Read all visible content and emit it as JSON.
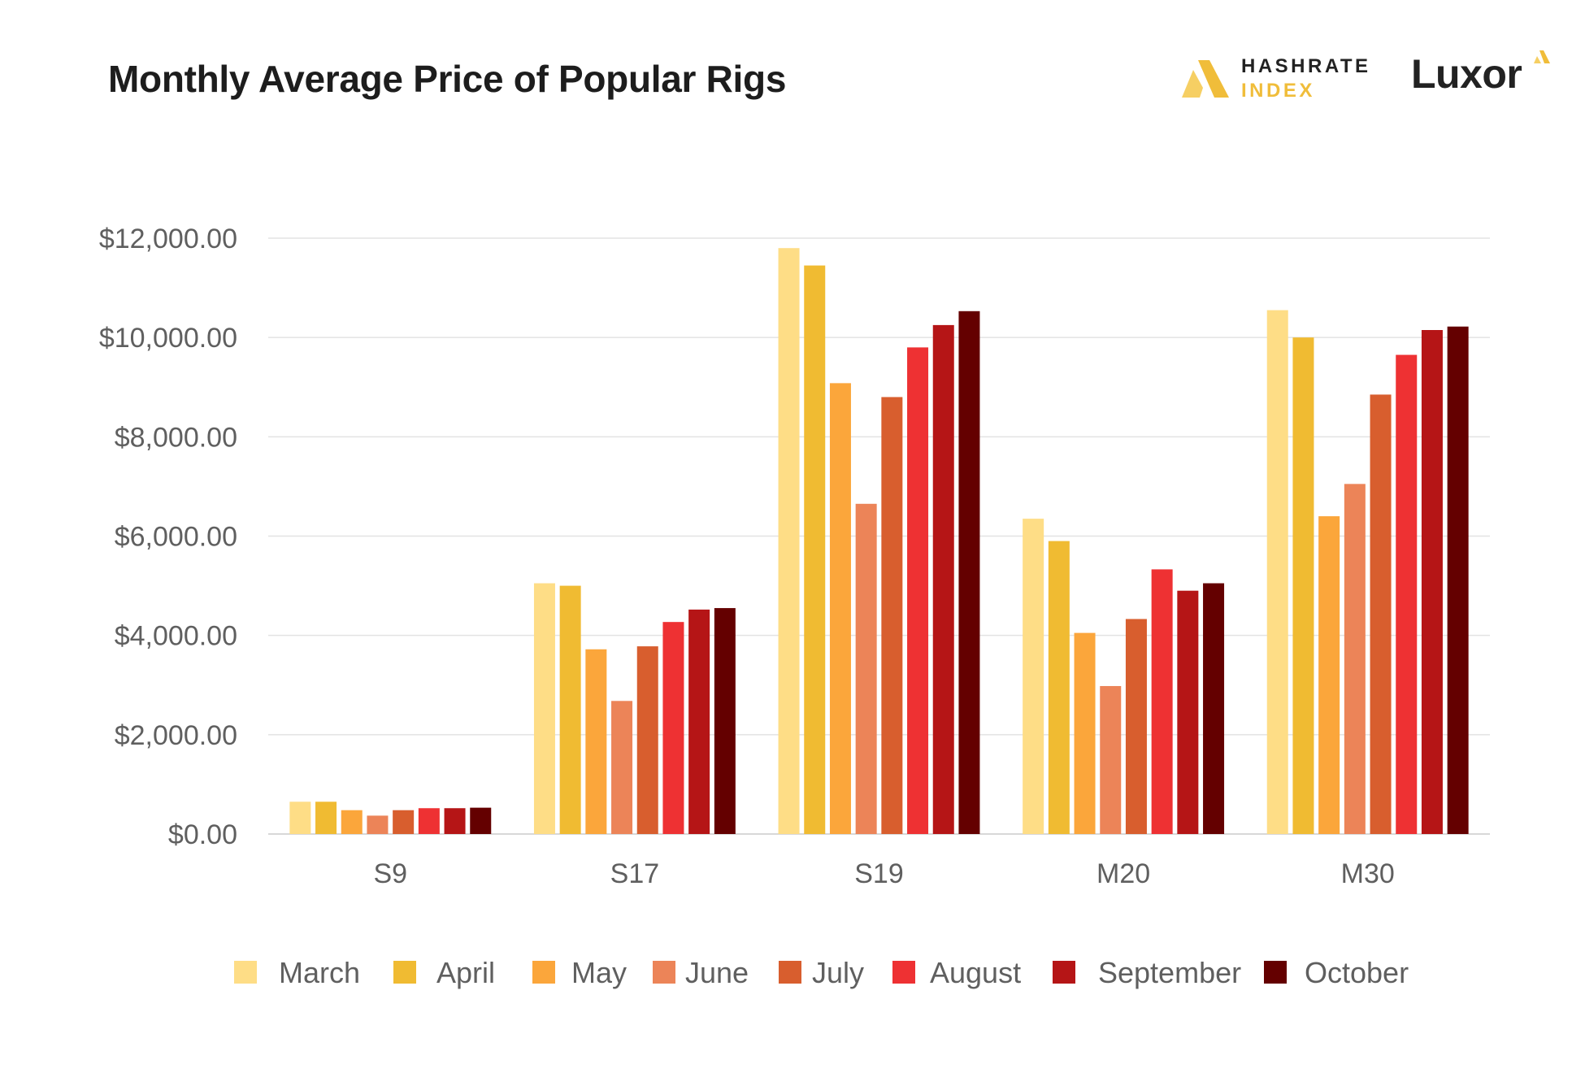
{
  "title": "Monthly Average Price of Popular Rigs",
  "logos": {
    "hashrate_line1": "HASHRATE",
    "hashrate_line2": "INDEX",
    "luxor": "Luxor"
  },
  "colors": {
    "March": "#fedd86",
    "April": "#f0bb32",
    "May": "#fba63b",
    "June": "#ec8458",
    "July": "#d85e2e",
    "August": "#ee3133",
    "September": "#b51516",
    "October": "#640000",
    "logo_gold": "#f0bd3a"
  },
  "chart_data": {
    "type": "bar",
    "title": "Monthly Average Price of Popular Rigs",
    "xlabel": "",
    "ylabel": "",
    "ylim": [
      0,
      12000
    ],
    "yticks": [
      0,
      2000,
      4000,
      6000,
      8000,
      10000,
      12000
    ],
    "ytick_labels": [
      "$0.00",
      "$2,000.00",
      "$4,000.00",
      "$6,000.00",
      "$8,000.00",
      "$10,000.00",
      "$12,000.00"
    ],
    "grid": true,
    "legend_position": "bottom",
    "categories": [
      "S9",
      "S17",
      "S19",
      "M20",
      "M30"
    ],
    "series": [
      {
        "name": "March",
        "values": [
          650,
          5050,
          11800,
          6350,
          10550
        ]
      },
      {
        "name": "April",
        "values": [
          650,
          5000,
          11450,
          5900,
          10000
        ]
      },
      {
        "name": "May",
        "values": [
          480,
          3720,
          9080,
          4050,
          6400
        ]
      },
      {
        "name": "June",
        "values": [
          370,
          2680,
          6650,
          2980,
          7050
        ]
      },
      {
        "name": "July",
        "values": [
          480,
          3780,
          8800,
          4330,
          8850
        ]
      },
      {
        "name": "August",
        "values": [
          520,
          4270,
          9800,
          5330,
          9650
        ]
      },
      {
        "name": "September",
        "values": [
          520,
          4520,
          10250,
          4900,
          10150
        ]
      },
      {
        "name": "October",
        "values": [
          530,
          4550,
          10530,
          5050,
          10220
        ]
      }
    ]
  }
}
